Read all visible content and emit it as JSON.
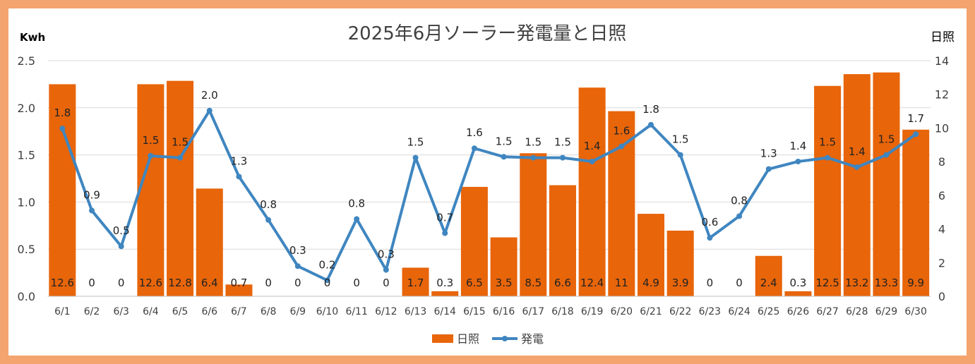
{
  "chart_data": {
    "type": "bar+line",
    "title": "2025年6月ソーラー発電量と日照",
    "ylabel_left": "Kwh",
    "ylabel_right": "日照",
    "ylim_left": [
      0,
      2.5
    ],
    "ylim_right": [
      0,
      14
    ],
    "yticks_left": [
      "0.0",
      "0.5",
      "1.0",
      "1.5",
      "2.0",
      "2.5"
    ],
    "yticks_right": [
      "0",
      "2",
      "4",
      "6",
      "8",
      "10",
      "12",
      "14"
    ],
    "grid": true,
    "legend_position": "bottom",
    "categories": [
      "6/1",
      "6/2",
      "6/3",
      "6/4",
      "6/5",
      "6/6",
      "6/7",
      "6/8",
      "6/9",
      "6/10",
      "6/11",
      "6/12",
      "6/13",
      "6/14",
      "6/15",
      "6/16",
      "6/17",
      "6/18",
      "6/19",
      "6/20",
      "6/21",
      "6/22",
      "6/23",
      "6/24",
      "6/25",
      "6/26",
      "6/27",
      "6/28",
      "6/29",
      "6/30"
    ],
    "series": [
      {
        "name": "日照",
        "type": "bar",
        "axis": "right",
        "color": "#E8650A",
        "values": [
          12.6,
          0,
          0,
          12.6,
          12.8,
          6.4,
          0.7,
          0,
          0,
          0,
          0,
          0,
          1.7,
          0.3,
          6.5,
          3.5,
          8.5,
          6.6,
          12.4,
          11,
          4.9,
          3.9,
          0,
          0,
          2.4,
          0.3,
          12.5,
          13.2,
          13.3,
          9.9
        ]
      },
      {
        "name": "発電",
        "type": "line",
        "axis": "left",
        "color": "#3F86C0",
        "values": [
          1.78,
          0.91,
          0.53,
          1.49,
          1.47,
          1.97,
          1.27,
          0.81,
          0.32,
          0.17,
          0.82,
          0.28,
          1.47,
          0.67,
          1.57,
          1.48,
          1.47,
          1.47,
          1.43,
          1.59,
          1.82,
          1.5,
          0.62,
          0.85,
          1.35,
          1.43,
          1.47,
          1.37,
          1.5,
          1.72
        ],
        "labels": [
          "1.8",
          "0.9",
          "0.5",
          "1.5",
          "1.5",
          "2.0",
          "1.3",
          "0.8",
          "0.3",
          "0.2",
          "0.8",
          "0.3",
          "1.5",
          "0.7",
          "1.6",
          "1.5",
          "1.5",
          "1.5",
          "1.4",
          "1.6",
          "1.8",
          "1.5",
          "0.6",
          "0.8",
          "1.3",
          "1.4",
          "1.5",
          "1.4",
          "1.5",
          "1.7"
        ]
      }
    ]
  }
}
